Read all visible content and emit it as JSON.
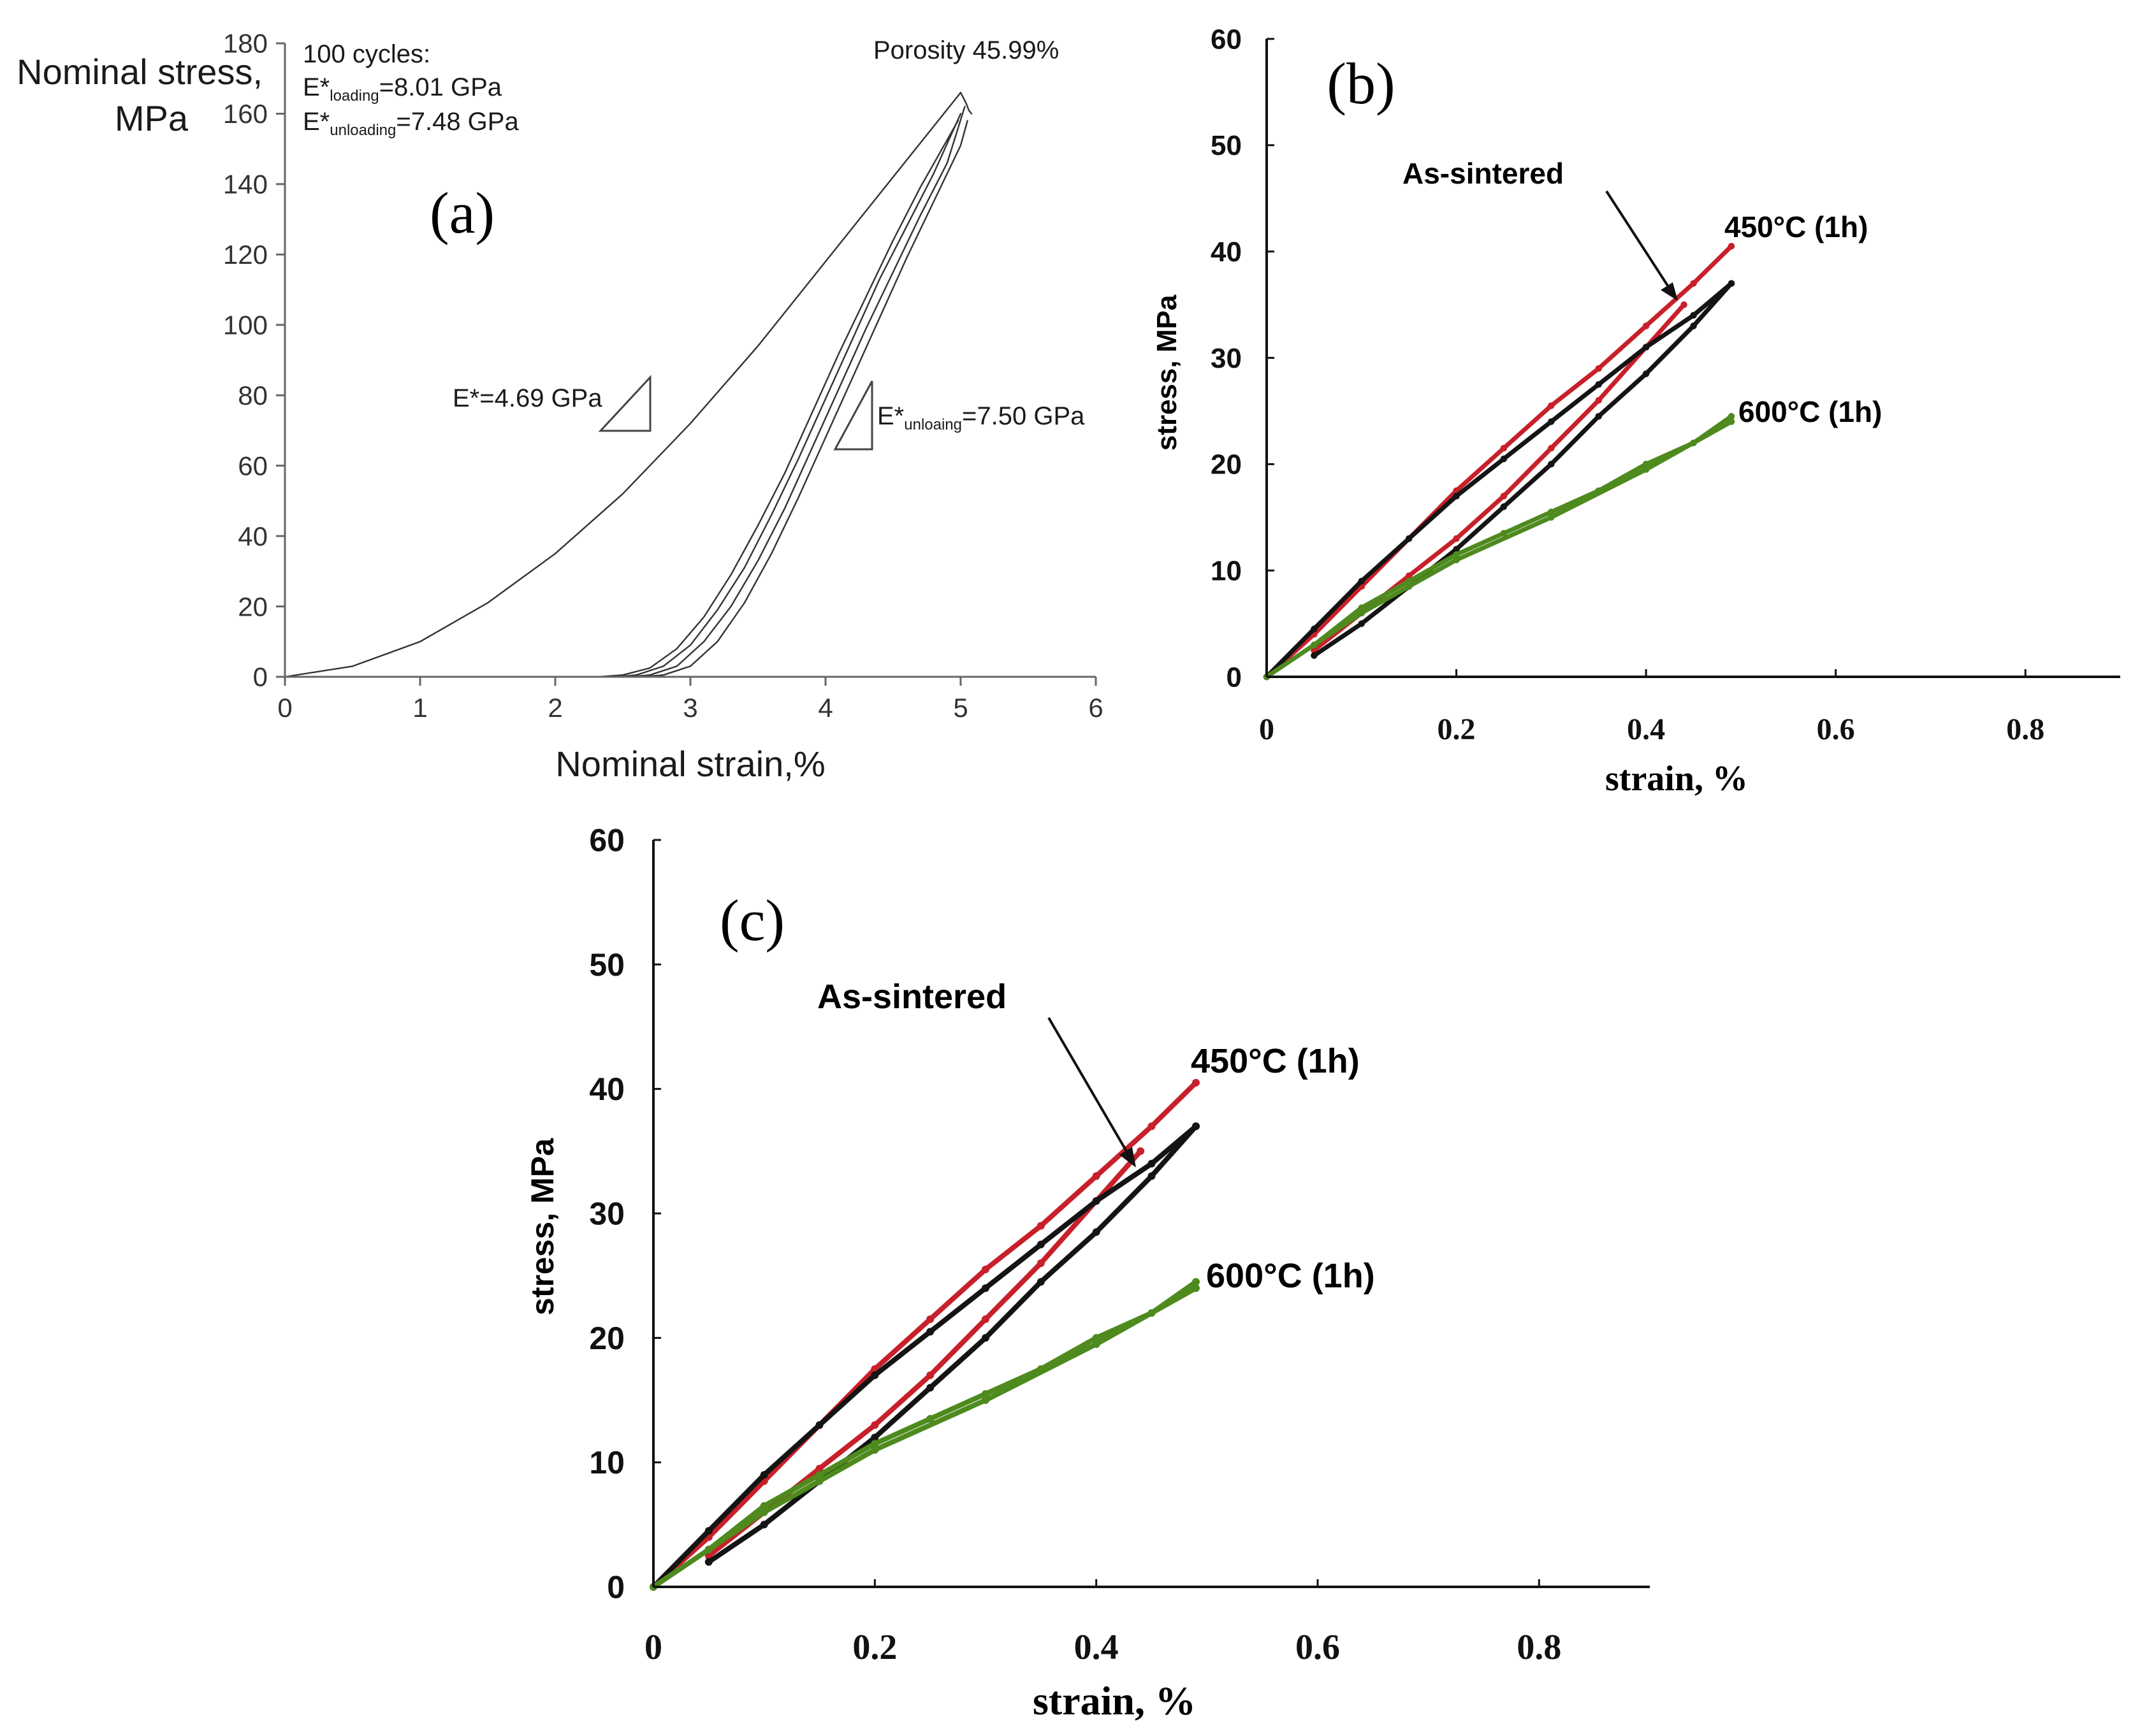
{
  "chart_data": [
    {
      "type": "line",
      "panel_label": "(a)",
      "ylabel_line1": "Nominal stress,",
      "ylabel_line2": "MPa",
      "xlabel": "Nominal strain,%",
      "xlim": [
        0,
        6
      ],
      "ylim": [
        0,
        180
      ],
      "x_ticks": [
        "0",
        "1",
        "2",
        "3",
        "4",
        "5",
        "6"
      ],
      "y_ticks": [
        "0",
        "20",
        "40",
        "60",
        "80",
        "100",
        "120",
        "140",
        "160",
        "180"
      ],
      "grid": false,
      "series": [
        {
          "role": "first-loading",
          "x": [
            0,
            0.5,
            1,
            1.5,
            2,
            2.5,
            3,
            3.5,
            4,
            4.5,
            5
          ],
          "y": [
            0,
            3,
            10,
            21,
            35,
            52,
            72,
            94,
            118,
            142,
            166
          ]
        },
        {
          "role": "first-unloading",
          "x": [
            5,
            5.04,
            5.06,
            5.08
          ],
          "y": [
            166,
            163,
            161,
            160
          ]
        },
        {
          "role": "cycle",
          "x": [
            2.32,
            2.5,
            2.7,
            2.9,
            3.1,
            3.3,
            3.5,
            3.7,
            3.9,
            4.1,
            4.3,
            4.5,
            4.7,
            4.98
          ],
          "y": [
            0,
            0.5,
            2.5,
            8,
            17,
            29,
            43,
            58,
            75,
            92,
            108,
            124,
            139,
            158
          ]
        },
        {
          "role": "cycle",
          "x": [
            2.45,
            2.6,
            2.8,
            3.0,
            3.2,
            3.4,
            3.6,
            3.8,
            4.0,
            4.2,
            4.4,
            4.6,
            4.8,
            5.0
          ],
          "y": [
            0,
            0.5,
            3,
            9,
            19,
            31,
            46,
            62,
            79,
            96,
            113,
            128,
            143,
            160
          ]
        },
        {
          "role": "cycle",
          "x": [
            2.55,
            2.7,
            2.9,
            3.1,
            3.3,
            3.5,
            3.7,
            3.9,
            4.1,
            4.3,
            4.5,
            4.7,
            4.9,
            5.03
          ],
          "y": [
            0,
            0.5,
            3,
            10,
            20,
            33,
            48,
            65,
            82,
            99,
            115,
            131,
            146,
            162
          ]
        },
        {
          "role": "cycle",
          "x": [
            2.65,
            2.8,
            3.0,
            3.2,
            3.4,
            3.6,
            3.8,
            4.0,
            4.2,
            4.4,
            4.6,
            4.8,
            5.0,
            5.05
          ],
          "y": [
            0,
            0.5,
            3,
            10,
            21,
            35,
            51,
            68,
            85,
            102,
            119,
            135,
            151,
            158
          ]
        }
      ],
      "annotations": {
        "cycles_title": "100 cycles:",
        "loading_prefix": "E*",
        "loading_sub": "loading",
        "loading_value": "=8.01 GPa",
        "unloading_prefix": "E*",
        "unloading_sub": "unloading",
        "unloading_value": "=7.48 GPa",
        "porosity": "Porosity 45.99%",
        "slope_first": "E*=4.69 GPa",
        "slope_cycle_prefix": "E*",
        "slope_cycle_sub": "unloaing",
        "slope_cycle_value": "=7.50 GPa"
      }
    },
    {
      "type": "line",
      "panel_label": "(b)",
      "ylabel": "stress, MPa",
      "xlabel": "strain, %",
      "xlim": [
        0,
        0.9
      ],
      "ylim": [
        0,
        60
      ],
      "x_ticks": [
        "0",
        "0.2",
        "0.4",
        "0.6",
        "0.8"
      ],
      "y_ticks": [
        "0",
        "10",
        "20",
        "30",
        "40",
        "50",
        "60"
      ],
      "grid": false,
      "series": [
        {
          "name": "450°C (1h)",
          "color": "#c8202a",
          "role": "loading",
          "x": [
            0,
            0.05,
            0.1,
            0.15,
            0.2,
            0.25,
            0.3,
            0.35,
            0.4,
            0.45,
            0.49
          ],
          "y": [
            0,
            4,
            8.5,
            13,
            17.5,
            21.5,
            25.5,
            29,
            33,
            37,
            40.5
          ]
        },
        {
          "name": "450°C (1h)",
          "color": "#c8202a",
          "role": "unloading",
          "x": [
            0.44,
            0.4,
            0.35,
            0.3,
            0.25,
            0.2,
            0.15,
            0.1,
            0.05
          ],
          "y": [
            35,
            31,
            26,
            21.5,
            17,
            13,
            9.5,
            6,
            2.5
          ]
        },
        {
          "name": "As-sintered",
          "color": "#141414",
          "role": "loading",
          "x": [
            0,
            0.05,
            0.1,
            0.15,
            0.2,
            0.25,
            0.3,
            0.35,
            0.4,
            0.45,
            0.49
          ],
          "y": [
            0,
            4.5,
            9,
            13,
            17,
            20.5,
            24,
            27.5,
            31,
            34,
            37
          ]
        },
        {
          "name": "As-sintered",
          "color": "#141414",
          "role": "unloading",
          "x": [
            0.49,
            0.45,
            0.4,
            0.35,
            0.3,
            0.25,
            0.2,
            0.15,
            0.1,
            0.05
          ],
          "y": [
            37,
            33,
            28.5,
            24.5,
            20,
            16,
            12,
            8.5,
            5,
            2
          ]
        },
        {
          "name": "600°C (1h)",
          "color": "#4e8a1e",
          "role": "loading",
          "x": [
            0,
            0.05,
            0.1,
            0.15,
            0.2,
            0.25,
            0.3,
            0.35,
            0.4,
            0.45,
            0.49
          ],
          "y": [
            0,
            3,
            6.5,
            9,
            11.5,
            13.5,
            15.5,
            17.5,
            20,
            22,
            24.5
          ]
        },
        {
          "name": "600°C (1h)",
          "color": "#4e8a1e",
          "role": "unloading",
          "x": [
            0.49,
            0.4,
            0.3,
            0.2,
            0.15,
            0.1,
            0.05
          ],
          "y": [
            24,
            19.5,
            15,
            11,
            8.5,
            6,
            3
          ]
        }
      ],
      "annotations": {
        "as_sintered": "As-sintered",
        "label_450": "450°C (1h)",
        "label_600": "600°C (1h)"
      }
    },
    {
      "type": "line",
      "panel_label": "(c)",
      "ylabel": "stress, MPa",
      "xlabel": "strain, %",
      "xlim": [
        0,
        0.9
      ],
      "ylim": [
        0,
        60
      ],
      "x_ticks": [
        "0",
        "0.2",
        "0.4",
        "0.6",
        "0.8"
      ],
      "y_ticks": [
        "0",
        "10",
        "20",
        "30",
        "40",
        "50",
        "60"
      ],
      "grid": false,
      "series": [
        {
          "name": "450°C (1h)",
          "color": "#c8202a",
          "role": "loading",
          "x": [
            0,
            0.05,
            0.1,
            0.15,
            0.2,
            0.25,
            0.3,
            0.35,
            0.4,
            0.45,
            0.49
          ],
          "y": [
            0,
            4,
            8.5,
            13,
            17.5,
            21.5,
            25.5,
            29,
            33,
            37,
            40.5
          ]
        },
        {
          "name": "450°C (1h)",
          "color": "#c8202a",
          "role": "unloading",
          "x": [
            0.44,
            0.4,
            0.35,
            0.3,
            0.25,
            0.2,
            0.15,
            0.1,
            0.05
          ],
          "y": [
            35,
            31,
            26,
            21.5,
            17,
            13,
            9.5,
            6,
            2.5
          ]
        },
        {
          "name": "As-sintered",
          "color": "#141414",
          "role": "loading",
          "x": [
            0,
            0.05,
            0.1,
            0.15,
            0.2,
            0.25,
            0.3,
            0.35,
            0.4,
            0.45,
            0.49
          ],
          "y": [
            0,
            4.5,
            9,
            13,
            17,
            20.5,
            24,
            27.5,
            31,
            34,
            37
          ]
        },
        {
          "name": "As-sintered",
          "color": "#141414",
          "role": "unloading",
          "x": [
            0.49,
            0.45,
            0.4,
            0.35,
            0.3,
            0.25,
            0.2,
            0.15,
            0.1,
            0.05
          ],
          "y": [
            37,
            33,
            28.5,
            24.5,
            20,
            16,
            12,
            8.5,
            5,
            2
          ]
        },
        {
          "name": "600°C (1h)",
          "color": "#4e8a1e",
          "role": "loading",
          "x": [
            0,
            0.05,
            0.1,
            0.15,
            0.2,
            0.25,
            0.3,
            0.35,
            0.4,
            0.45,
            0.49
          ],
          "y": [
            0,
            3,
            6.5,
            9,
            11.5,
            13.5,
            15.5,
            17.5,
            20,
            22,
            24.5
          ]
        },
        {
          "name": "600°C (1h)",
          "color": "#4e8a1e",
          "role": "unloading",
          "x": [
            0.49,
            0.4,
            0.3,
            0.2,
            0.15,
            0.1,
            0.05
          ],
          "y": [
            24,
            19.5,
            15,
            11,
            8.5,
            6,
            3
          ]
        }
      ],
      "annotations": {
        "as_sintered": "As-sintered",
        "label_450": "450°C (1h)",
        "label_600": "600°C (1h)"
      }
    }
  ]
}
